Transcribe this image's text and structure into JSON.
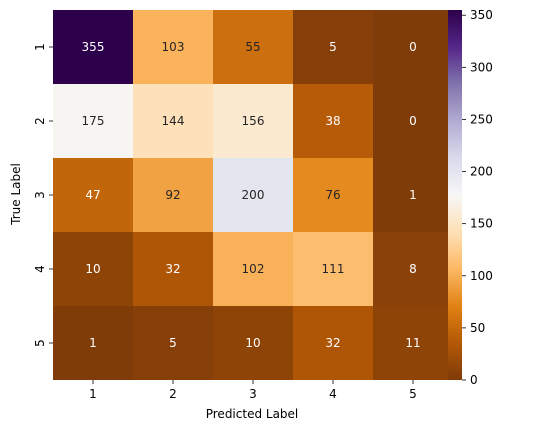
{
  "chart_data": {
    "type": "heatmap",
    "title": "",
    "xlabel": "Predicted Label",
    "ylabel": "True Label",
    "x_categories": [
      "1",
      "2",
      "3",
      "4",
      "5"
    ],
    "y_categories": [
      "1",
      "2",
      "3",
      "4",
      "5"
    ],
    "values": [
      [
        355,
        103,
        55,
        5,
        0
      ],
      [
        175,
        144,
        156,
        38,
        0
      ],
      [
        47,
        92,
        200,
        76,
        1
      ],
      [
        10,
        32,
        102,
        111,
        8
      ],
      [
        1,
        5,
        10,
        32,
        11
      ]
    ],
    "colormap": "PuOr",
    "colormap_stops": [
      "#7f3b08",
      "#b35806",
      "#e08214",
      "#fdb863",
      "#fee0b6",
      "#f7f7f7",
      "#d8daeb",
      "#b2abd2",
      "#8073ac",
      "#542788",
      "#2d004b"
    ],
    "value_range": [
      0,
      355
    ],
    "colorbar_ticks": [
      "0",
      "50",
      "100",
      "150",
      "200",
      "250",
      "300",
      "350"
    ],
    "colorbar_tick_values": [
      0,
      50,
      100,
      150,
      200,
      250,
      300,
      350
    ],
    "grid": false,
    "legend": "colorbar-right"
  }
}
